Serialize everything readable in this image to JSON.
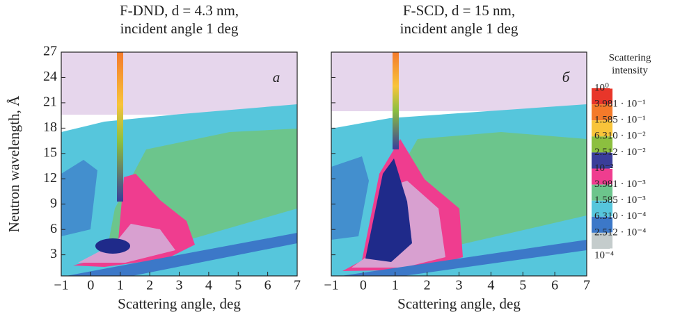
{
  "chart_data": [
    {
      "type": "heatmap",
      "title": [
        "F-DND, d = 4.3 nm,",
        "incident angle 1 deg"
      ],
      "panel_label": "a",
      "xlabel": "Scattering angle, deg",
      "ylabel": "Neutron wavelength, Å",
      "xlim": [
        -1,
        7
      ],
      "xticks": [
        {
          "value": -1,
          "label": "−1"
        },
        0,
        1,
        2,
        3,
        4,
        5,
        6,
        7
      ],
      "ylim": [
        0.5,
        27
      ],
      "yticks": [
        3,
        6,
        9,
        12,
        15,
        18,
        21,
        24,
        27
      ]
    },
    {
      "type": "heatmap",
      "title": [
        "F-SCD, d = 15 nm,",
        "incident angle 1 deg"
      ],
      "panel_label": "б",
      "xlabel": "Scattering angle, deg",
      "xlim": [
        -1,
        7
      ],
      "xticks": [
        {
          "value": -1,
          "label": "−1"
        },
        0,
        1,
        2,
        3,
        4,
        5,
        6,
        7
      ],
      "ylim": [
        0.5,
        27
      ],
      "yticks": [
        3,
        6,
        9,
        12,
        15,
        18,
        21,
        24,
        27
      ]
    }
  ],
  "colorbar": {
    "title": [
      "Scattering",
      "intensity"
    ],
    "log": true,
    "levels": [
      {
        "value": 1,
        "label": "10⁰"
      },
      {
        "value": 0.3981,
        "label": "3.981 · 10⁻¹"
      },
      {
        "value": 0.1585,
        "label": "1.585 · 10⁻¹"
      },
      {
        "value": 0.0631,
        "label": "6.310 · 10⁻²"
      },
      {
        "value": 0.02512,
        "label": "2.512 · 10⁻²"
      },
      {
        "value": 0.01,
        "label": "10⁻²"
      },
      {
        "value": 0.003981,
        "label": "3.981 · 10⁻³"
      },
      {
        "value": 0.001585,
        "label": "1.585 · 10⁻³"
      },
      {
        "value": 0.000631,
        "label": "6.310 · 10⁻⁴"
      },
      {
        "value": 0.0002512,
        "label": "2.512 · 10⁻⁴"
      },
      {
        "value": 0.0001,
        "label": "10⁻⁴"
      }
    ],
    "colors": [
      "#e8362a",
      "#f47a2a",
      "#f8c43a",
      "#8cbf3f",
      "#3a3e9a",
      "#ef3d8f",
      "#6cc58c",
      "#56c6dc",
      "#3c78c8",
      "#c4cccc"
    ]
  }
}
